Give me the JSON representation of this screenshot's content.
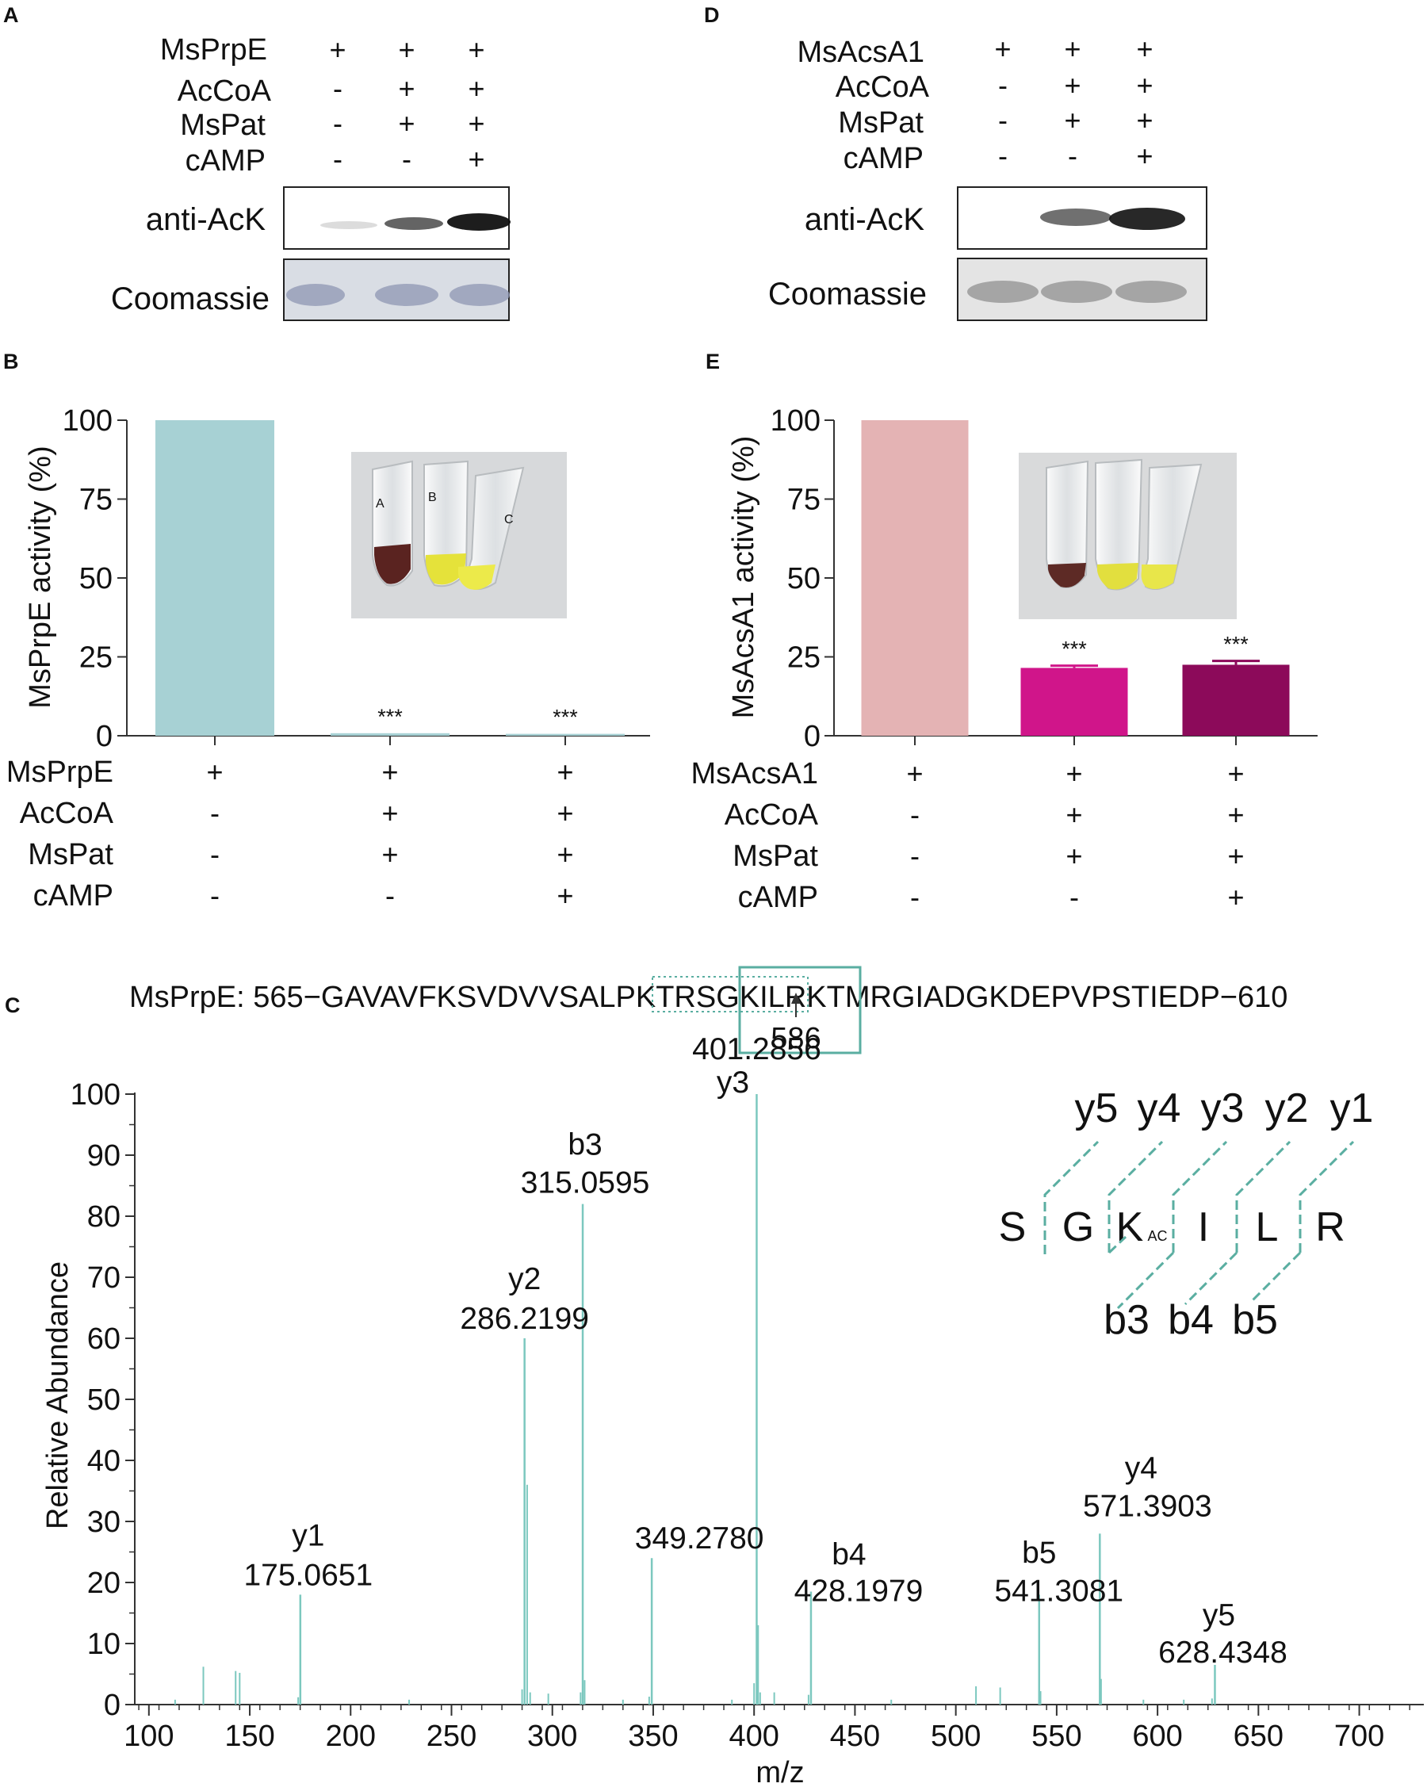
{
  "colors": {
    "panelB_bar": "#a7d1d4",
    "panelE_bars": [
      "#e4b3b4",
      "#d0158a",
      "#8c0a5a"
    ],
    "spectrum": "#7cc8bf",
    "box": "#5aaea1"
  },
  "panels": {
    "A": {
      "letter": "A",
      "rows": [
        {
          "label": "MsPrpE",
          "signs": [
            "+",
            "+",
            "+"
          ]
        },
        {
          "label": "AcCoA",
          "signs": [
            "-",
            "+",
            "+"
          ]
        },
        {
          "label": "MsPat",
          "signs": [
            "-",
            "+",
            "+"
          ]
        },
        {
          "label": "cAMP",
          "signs": [
            "-",
            "-",
            "+"
          ]
        }
      ],
      "blot_labels": [
        "anti-AcK",
        "Coomassie"
      ],
      "anti_ack_intensity": [
        0.15,
        0.65,
        0.95
      ]
    },
    "D": {
      "letter": "D",
      "rows": [
        {
          "label": "MsAcsA1",
          "signs": [
            "+",
            "+",
            "+"
          ]
        },
        {
          "label": "AcCoA",
          "signs": [
            "-",
            "+",
            "+"
          ]
        },
        {
          "label": "MsPat",
          "signs": [
            "-",
            "+",
            "+"
          ]
        },
        {
          "label": "cAMP",
          "signs": [
            "-",
            "-",
            "+"
          ]
        }
      ],
      "blot_labels": [
        "anti-AcK",
        "Coomassie"
      ],
      "anti_ack_intensity": [
        0.0,
        0.6,
        0.9
      ]
    },
    "B": {
      "letter": "B",
      "photo_tubes": [
        "A",
        "B",
        "C"
      ]
    },
    "E": {
      "letter": "E"
    },
    "C": {
      "letter": "C"
    }
  },
  "chart_data": [
    {
      "panel": "B",
      "type": "bar",
      "categories": [
        "1",
        "2",
        "3"
      ],
      "values": [
        100,
        0.8,
        0.6
      ],
      "significance": [
        "",
        "***",
        "***"
      ],
      "ylabel": "MsPrpE activity (%)",
      "ylim": [
        0,
        100
      ],
      "yticks": [
        0,
        25,
        50,
        75,
        100
      ],
      "conditions": [
        {
          "label": "MsPrpE",
          "signs": [
            "+",
            "+",
            "+"
          ]
        },
        {
          "label": "AcCoA",
          "signs": [
            "-",
            "+",
            "+"
          ]
        },
        {
          "label": "MsPat",
          "signs": [
            "-",
            "+",
            "+"
          ]
        },
        {
          "label": "cAMP",
          "signs": [
            "-",
            "-",
            "+"
          ]
        }
      ]
    },
    {
      "panel": "E",
      "type": "bar",
      "categories": [
        "1",
        "2",
        "3"
      ],
      "values": [
        100,
        21.5,
        22.5
      ],
      "errors": [
        0,
        0.7,
        1.2
      ],
      "significance": [
        "",
        "***",
        "***"
      ],
      "ylabel": "MsAcsA1 activity (%)",
      "ylim": [
        0,
        100
      ],
      "yticks": [
        0,
        25,
        50,
        75,
        100
      ],
      "conditions": [
        {
          "label": "MsAcsA1",
          "signs": [
            "+",
            "+",
            "+"
          ]
        },
        {
          "label": "AcCoA",
          "signs": [
            "-",
            "+",
            "+"
          ]
        },
        {
          "label": "MsPat",
          "signs": [
            "-",
            "+",
            "+"
          ]
        },
        {
          "label": "cAMP",
          "signs": [
            "-",
            "-",
            "+"
          ]
        }
      ]
    },
    {
      "panel": "C",
      "type": "bar",
      "title": "MsPrpE: 565−GAVAVFKSVDVVSALPKTRSGKILRKTMRGIADGKDEPVPSTIEDP−610",
      "sequence": {
        "prefix": "MsPrpE: 565−",
        "seq": "GAVAVFKSVDVVSALPKTRSGKILRKTMRGIADGKDEPVPSTIEDP",
        "suffix": "−610",
        "site_label": "586"
      },
      "xlabel": "m/z",
      "ylabel": "Relative Abundance",
      "xlim": [
        93,
        732
      ],
      "ylim": [
        0,
        100
      ],
      "xticks": [
        100,
        150,
        200,
        250,
        300,
        350,
        400,
        450,
        500,
        550,
        600,
        650,
        700
      ],
      "yticks": [
        0,
        10,
        20,
        30,
        40,
        50,
        60,
        70,
        80,
        90,
        100
      ],
      "annotated_peaks": [
        {
          "mz": 175.0651,
          "intensity": 18,
          "ion": "y1",
          "mz_label": "175.0651"
        },
        {
          "mz": 286.2199,
          "intensity": 60,
          "ion": "y2",
          "mz_label": "286.2199"
        },
        {
          "mz": 315.0595,
          "intensity": 82,
          "ion": "b3",
          "mz_label": "315.0595"
        },
        {
          "mz": 349.278,
          "intensity": 24,
          "ion": "",
          "mz_label": "349.2780"
        },
        {
          "mz": 401.2856,
          "intensity": 100,
          "ion": "y3",
          "mz_label": "401.2856"
        },
        {
          "mz": 428.1979,
          "intensity": 18.5,
          "ion": "b4",
          "mz_label": "428.1979"
        },
        {
          "mz": 541.3081,
          "intensity": 18,
          "ion": "b5",
          "mz_label": "541.3081"
        },
        {
          "mz": 571.3903,
          "intensity": 28,
          "ion": "y4",
          "mz_label": "571.3903"
        },
        {
          "mz": 628.4348,
          "intensity": 6.5,
          "ion": "y5",
          "mz_label": "628.4348"
        }
      ],
      "minor_peaks": [
        [
          113,
          0.8
        ],
        [
          127,
          6.2
        ],
        [
          143,
          5.5
        ],
        [
          145,
          5.2
        ],
        [
          174,
          1.2
        ],
        [
          229,
          0.8
        ],
        [
          285,
          2.5
        ],
        [
          287.5,
          36
        ],
        [
          289,
          2
        ],
        [
          298,
          1.8
        ],
        [
          314,
          2
        ],
        [
          316,
          4
        ],
        [
          335,
          0.8
        ],
        [
          348,
          1.3
        ],
        [
          389,
          0.8
        ],
        [
          400,
          3.5
        ],
        [
          402,
          13
        ],
        [
          403,
          2
        ],
        [
          410,
          2
        ],
        [
          427,
          1.6
        ],
        [
          468,
          0.8
        ],
        [
          510,
          3
        ],
        [
          522,
          2.8
        ],
        [
          542,
          2.2
        ],
        [
          572,
          4.2
        ],
        [
          593,
          0.8
        ],
        [
          613,
          0.8
        ],
        [
          627,
          1
        ]
      ],
      "fragment_diagram": {
        "residues": [
          "S",
          "G",
          "K",
          "I",
          "L",
          "R"
        ],
        "modification": "AC",
        "y_ions": [
          "y5",
          "y4",
          "y3",
          "y2",
          "y1"
        ],
        "b_ions": [
          "b3",
          "b4",
          "b5"
        ]
      }
    }
  ]
}
